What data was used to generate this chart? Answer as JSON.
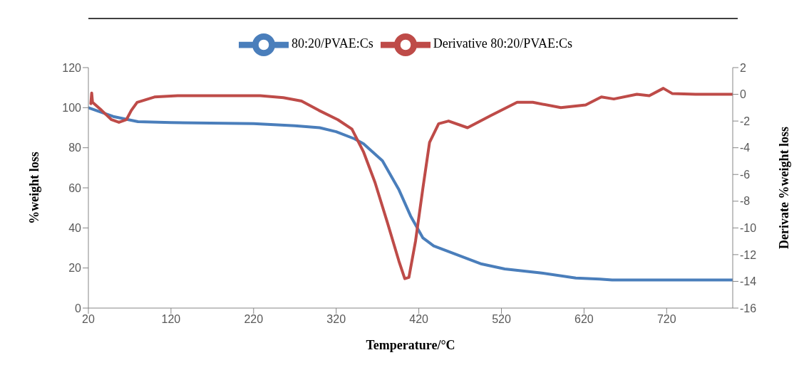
{
  "chart_data": {
    "type": "line",
    "xlabel": "Temperature/°C",
    "ylabel": "%weight loss",
    "y2label": "Derivate %weight loss",
    "xlim": [
      20,
      800
    ],
    "xticks": [
      20,
      120,
      220,
      320,
      420,
      520,
      620,
      720
    ],
    "ylim": [
      0,
      120
    ],
    "yticks": [
      0,
      20,
      40,
      60,
      80,
      100,
      120
    ],
    "y2lim": [
      -16,
      2
    ],
    "y2ticks": [
      -16,
      -14,
      -12,
      -10,
      -8,
      -6,
      -4,
      -2,
      0,
      2
    ],
    "grid": false,
    "legend": "top",
    "marker": "none",
    "series": [
      {
        "name": "80:20/PVAE:Cs",
        "color": "#4a7ebb",
        "x": [
          20,
          50,
          80,
          120,
          220,
          270,
          300,
          320,
          342,
          353,
          376,
          396,
          410,
          425,
          438,
          467,
          496,
          524,
          567,
          610,
          639,
          654,
          700,
          800
        ],
        "values": [
          100,
          95.6,
          93,
          92.6,
          92,
          91,
          90,
          88,
          84.5,
          82,
          73.5,
          59,
          46,
          35,
          31,
          26.5,
          22,
          19.5,
          17.6,
          15,
          14.5,
          14,
          14,
          14
        ]
      },
      {
        "name": "Derivative 80:20/PVAE:Cs",
        "color": "#be4b48",
        "axis": "y2",
        "x": [
          23,
          24,
          25,
          36,
          48,
          57,
          66,
          72,
          79,
          100,
          128,
          228,
          256,
          278,
          299,
          322,
          339,
          353,
          367,
          382,
          396,
          403,
          408,
          416,
          425,
          433,
          444,
          456,
          479,
          507,
          539,
          558,
          592,
          622,
          641,
          656,
          684,
          699,
          716,
          727,
          755,
          800
        ],
        "values": [
          -0.7,
          0.1,
          -0.6,
          -1.2,
          -1.9,
          -2.1,
          -1.9,
          -1.2,
          -0.6,
          -0.2,
          -0.1,
          -0.1,
          -0.25,
          -0.5,
          -1.2,
          -1.9,
          -2.6,
          -4.3,
          -6.6,
          -9.6,
          -12.5,
          -13.8,
          -13.7,
          -11,
          -7,
          -3.6,
          -2.2,
          -2,
          -2.5,
          -1.6,
          -0.6,
          -0.6,
          -1,
          -0.8,
          -0.2,
          -0.35,
          0,
          -0.1,
          0.45,
          0.05,
          0,
          0
        ]
      }
    ]
  }
}
